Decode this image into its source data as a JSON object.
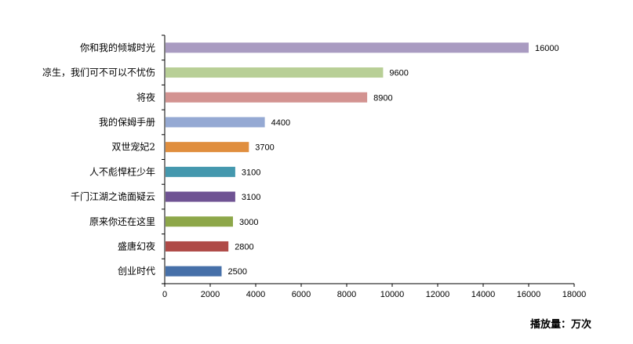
{
  "chart_data": {
    "type": "bar",
    "orientation": "horizontal",
    "categories": [
      "你和我的倾城时光",
      "凉生，我们可不可以不忧伤",
      "将夜",
      "我的保姆手册",
      "双世宠妃2",
      "人不彪悍枉少年",
      "千门江湖之诡面疑云",
      "原来你还在这里",
      "盛唐幻夜",
      "创业时代"
    ],
    "values": [
      16000,
      9600,
      8900,
      4400,
      3700,
      3100,
      3100,
      3000,
      2800,
      2500
    ],
    "colors": [
      "#A99BC1",
      "#B8CF96",
      "#D39391",
      "#95A9D3",
      "#E08E3E",
      "#4498AE",
      "#6F5393",
      "#8DA749",
      "#AF4A47",
      "#4670A9"
    ],
    "xlim": [
      0,
      18000
    ],
    "xticks": [
      0,
      2000,
      4000,
      6000,
      8000,
      10000,
      12000,
      14000,
      16000,
      18000
    ],
    "unit_label": "播放量：万次",
    "grid": false
  }
}
